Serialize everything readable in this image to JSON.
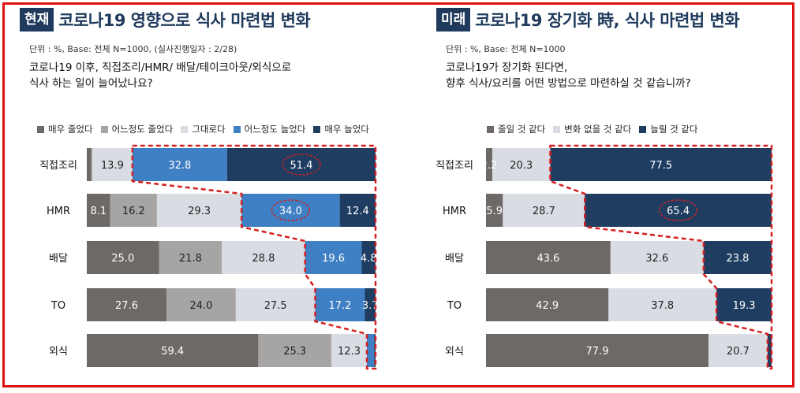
{
  "left": {
    "badge": "현재",
    "title": "코로나19 영향으로 식사 마련법 변화",
    "unit": "단위 : %, Base: 전체 N=1000, (실사진행일자 : 2/28)",
    "question_line1": "코로나19 이후, 직접조리/HMR/ 배달/테이크아웃/외식으로",
    "question_line2": "식사 하는 일이 늘어났나요?",
    "legend": [
      {
        "label": "매우 줄었다",
        "color": "#6e6967"
      },
      {
        "label": "어느정도 줄었다",
        "color": "#a7a5a4"
      },
      {
        "label": "그대로다",
        "color": "#d9dce3"
      },
      {
        "label": "어느정도 늘었다",
        "color": "#3f7fc4"
      },
      {
        "label": "매우 늘었다",
        "color": "#1e3d61"
      }
    ]
  },
  "right": {
    "badge": "미래",
    "title": "코로나19 장기화 時, 식사 마련법 변화",
    "unit": "단위 : %, Base: 전체 N=1000",
    "question_line1": "코로나19가 장기화 된다면,",
    "question_line2": "향후 식사/요리를 어떤 방법으로 마련하실 것 같습니까?",
    "legend": [
      {
        "label": "줄일 것 같다",
        "color": "#6e6967"
      },
      {
        "label": "변화 없을 것 같다",
        "color": "#d9dce3"
      },
      {
        "label": "늘릴 것 같다",
        "color": "#1e3d61"
      }
    ]
  },
  "chart_data": [
    {
      "type": "bar",
      "orientation": "horizontal-stacked-100",
      "categories": [
        "직접조리",
        "HMR",
        "배달",
        "TO",
        "외식"
      ],
      "series": [
        {
          "name": "매우 줄었다",
          "color": "#6e6967",
          "values": [
            1.5,
            8.1,
            25.0,
            27.6,
            59.4
          ]
        },
        {
          "name": "어느정도 줄었다",
          "color": "#a7a5a4",
          "values": [
            0.4,
            16.2,
            21.8,
            24.0,
            25.3
          ]
        },
        {
          "name": "그대로다",
          "color": "#d9dce3",
          "values": [
            13.9,
            29.3,
            28.8,
            27.5,
            12.3
          ]
        },
        {
          "name": "어느정도 늘었다",
          "color": "#3f7fc4",
          "values": [
            32.8,
            34.0,
            19.6,
            17.2,
            2.5
          ]
        },
        {
          "name": "매우 늘었다",
          "color": "#1e3d61",
          "values": [
            51.4,
            12.4,
            4.8,
            3.7,
            0.5
          ]
        }
      ],
      "data_labels": [
        [
          "",
          "",
          "13.9",
          "32.8",
          "51.4"
        ],
        [
          "8.1",
          "16.2",
          "29.3",
          "34.0",
          "12.4"
        ],
        [
          "25.0",
          "21.8",
          "28.8",
          "19.6",
          "4.8"
        ],
        [
          "27.6",
          "24.0",
          "27.5",
          "17.2",
          "3.7"
        ],
        [
          "59.4",
          "25.3",
          "12.3",
          "",
          ""
        ]
      ],
      "highlight": {
        "row": 0,
        "segment": 4,
        "row2": 1,
        "segment2": 3
      },
      "xlim": [
        0,
        100
      ],
      "legend_position": "top"
    },
    {
      "type": "bar",
      "orientation": "horizontal-stacked-100",
      "categories": [
        "직접조리",
        "HMR",
        "배달",
        "TO",
        "외식"
      ],
      "series": [
        {
          "name": "줄일 것 같다",
          "color": "#6e6967",
          "values": [
            2.2,
            5.9,
            43.6,
            42.9,
            77.9
          ]
        },
        {
          "name": "변화 없을 것 같다",
          "color": "#d9dce3",
          "values": [
            20.3,
            28.7,
            32.6,
            37.8,
            20.7
          ]
        },
        {
          "name": "늘릴 것 같다",
          "color": "#1e3d61",
          "values": [
            77.5,
            65.4,
            23.8,
            19.3,
            1.4
          ]
        }
      ],
      "data_labels": [
        [
          "2.2",
          "20.3",
          "77.5"
        ],
        [
          "5.9",
          "28.7",
          "65.4"
        ],
        [
          "43.6",
          "32.6",
          "23.8"
        ],
        [
          "42.9",
          "37.8",
          "19.3"
        ],
        [
          "77.9",
          "20.7",
          ""
        ]
      ],
      "highlight": {
        "row": 1,
        "segment": 2
      },
      "xlim": [
        0,
        100
      ],
      "legend_position": "top"
    }
  ]
}
